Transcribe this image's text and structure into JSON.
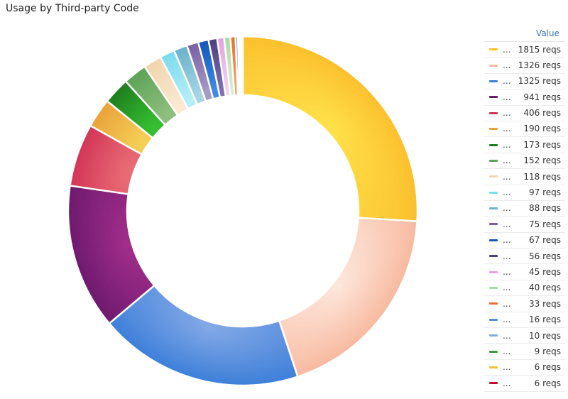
{
  "title": "Usage by Third-party Code",
  "chart_data": {
    "type": "pie",
    "variant": "donut",
    "legend_header": "Value",
    "unit": "reqs",
    "legend_name_display": "...",
    "legend_placement": "right",
    "values": [
      1815,
      1326,
      1325,
      941,
      406,
      190,
      173,
      152,
      118,
      97,
      88,
      75,
      67,
      56,
      45,
      40,
      33,
      16,
      10,
      9,
      6,
      6
    ],
    "colors": [
      "#FBC02D",
      "#F8B99F",
      "#3D7FD9",
      "#6E1A6E",
      "#D33557",
      "#E9A23B",
      "#1E7D1E",
      "#5CA356",
      "#F0D5AE",
      "#7ADCEC",
      "#6AB2CC",
      "#7A5FA3",
      "#1456B8",
      "#4C3F7F",
      "#E4A0E0",
      "#A8DCA3",
      "#EB6F2E",
      "#5590D6",
      "#7FAED6",
      "#3E9F3E",
      "#F2C230",
      "#C0102E"
    ],
    "gradient_tops": [
      "#FFE14A",
      "#FDE6DA",
      "#82A8E6",
      "#A02D8A",
      "#E96C75",
      "#F5CF55",
      "#36C032",
      "#8FBE7E",
      "#FBE9D2",
      "#B5EEF7",
      "#A5D6E3",
      "#A99BC6",
      "#3E8BEA",
      "#7F6FB5",
      "#F2D3F0",
      "#D4EDD0",
      "#F4A272",
      "#8DB5E8",
      "#B7D1EA",
      "#7CCB7A",
      "#FBE07A",
      "#E56176"
    ]
  }
}
